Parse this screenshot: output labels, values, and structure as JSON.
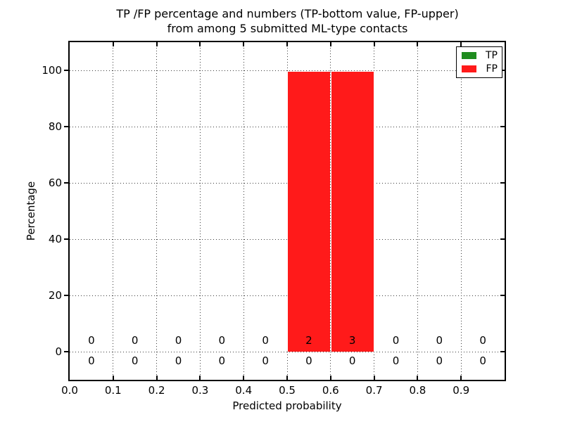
{
  "chart_data": {
    "type": "bar",
    "title_lines": [
      "TP /FP percentage and numbers (TP-bottom value, FP-upper)",
      "from among 5 submitted ML-type contacts"
    ],
    "xlabel": "Predicted probability",
    "ylabel": "Percentage",
    "xlim": [
      0.0,
      1.0
    ],
    "ylim": [
      -10,
      110
    ],
    "x_tick_values": [
      0.0,
      0.1,
      0.2,
      0.3,
      0.4,
      0.5,
      0.6,
      0.7,
      0.8,
      0.9
    ],
    "x_tick_labels": [
      "0.0",
      "0.1",
      "0.2",
      "0.3",
      "0.4",
      "0.5",
      "0.6",
      "0.7",
      "0.8",
      "0.9"
    ],
    "y_tick_values": [
      0,
      20,
      40,
      60,
      80,
      100
    ],
    "y_tick_labels": [
      "0",
      "20",
      "40",
      "60",
      "80",
      "100"
    ],
    "bin_edges": [
      0.0,
      0.1,
      0.2,
      0.3,
      0.4,
      0.5,
      0.6,
      0.7,
      0.8,
      0.9,
      1.0
    ],
    "bin_centers": [
      0.05,
      0.15,
      0.25,
      0.35,
      0.45,
      0.55,
      0.65,
      0.75,
      0.85,
      0.95
    ],
    "grid": "dotted",
    "legend_position": "upper right",
    "series": [
      {
        "name": "TP",
        "color": "#1f8c1f",
        "percent": [
          0,
          0,
          0,
          0,
          0,
          0,
          0,
          0,
          0,
          0
        ],
        "counts": [
          0,
          0,
          0,
          0,
          0,
          0,
          0,
          0,
          0,
          0
        ],
        "counts_row": "bottom"
      },
      {
        "name": "FP",
        "color": "#ff1a1a",
        "percent": [
          0,
          0,
          0,
          0,
          0,
          99.5,
          99.5,
          0,
          0,
          0
        ],
        "counts": [
          0,
          0,
          0,
          0,
          0,
          2,
          3,
          0,
          0,
          0
        ],
        "counts_row": "top"
      }
    ]
  }
}
